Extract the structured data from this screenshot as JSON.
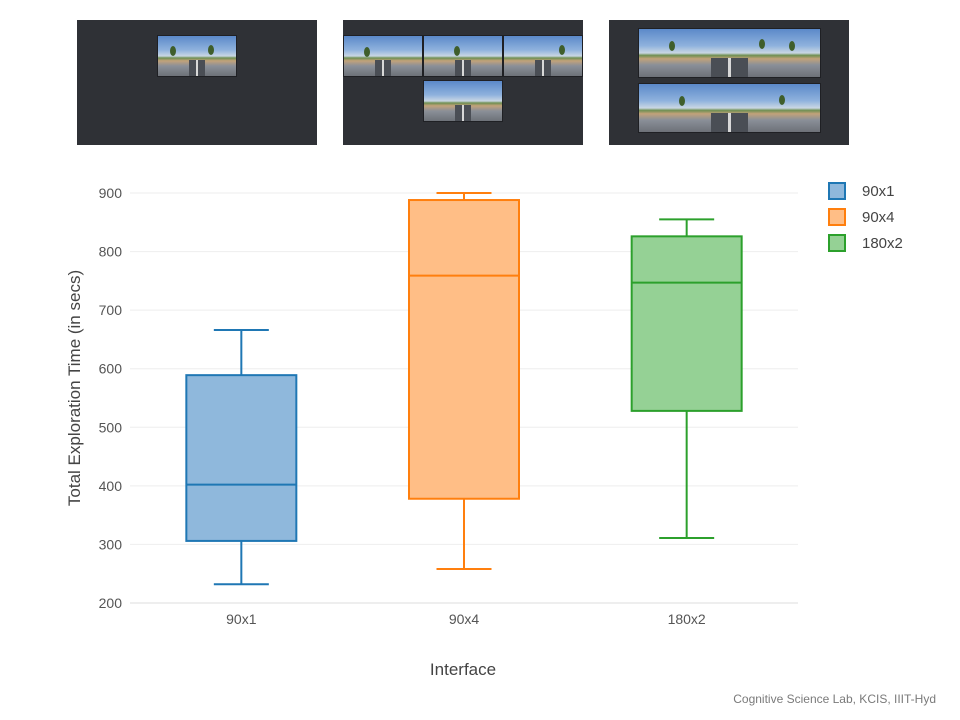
{
  "footer": "Cognitive Science Lab, KCIS, IIIT-Hyd",
  "thumbnails": [
    {
      "label": "90x1",
      "views": 1
    },
    {
      "label": "90x4",
      "views": 4
    },
    {
      "label": "180x2",
      "views": 2
    }
  ],
  "chart_data": {
    "type": "box",
    "title": "",
    "xlabel": "Interface",
    "ylabel": "Total Exploration Time (in secs)",
    "ylim": [
      200,
      900
    ],
    "yticks": [
      200,
      300,
      400,
      500,
      600,
      700,
      800,
      900
    ],
    "grid": true,
    "legend_position": "right",
    "series": [
      {
        "name": "90x1",
        "color": "#1f77b4",
        "fill": "#8fb8dc",
        "min": 232,
        "q1": 306,
        "median": 402,
        "q3": 589,
        "max": 666
      },
      {
        "name": "90x4",
        "color": "#ff7f0e",
        "fill": "#ffbe86",
        "min": 258,
        "q1": 378,
        "median": 759,
        "q3": 888,
        "max": 900
      },
      {
        "name": "180x2",
        "color": "#2ca02c",
        "fill": "#95d195",
        "min": 311,
        "q1": 528,
        "median": 747,
        "q3": 826,
        "max": 855
      }
    ]
  }
}
